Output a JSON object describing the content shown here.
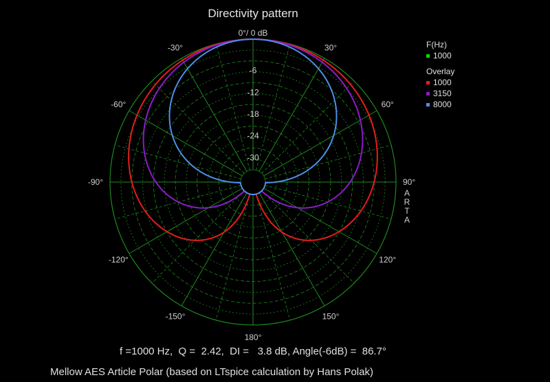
{
  "chart_data": {
    "type": "polar",
    "title": "Directivity pattern",
    "radial_unit_label": "0°/ 0 dB",
    "radial_ticks_db": [
      -6,
      -12,
      -18,
      -24,
      -30
    ],
    "radial_range_db": [
      -36,
      0
    ],
    "angle_ticks": [
      {
        "angle": -30,
        "label": "-30°"
      },
      {
        "angle": 30,
        "label": "30°"
      },
      {
        "angle": -60,
        "label": "-60°"
      },
      {
        "angle": 60,
        "label": "60°"
      },
      {
        "angle": -90,
        "label": "-90°"
      },
      {
        "angle": 90,
        "label": "90°"
      },
      {
        "angle": -120,
        "label": "-120°"
      },
      {
        "angle": 120,
        "label": "120°"
      },
      {
        "angle": -150,
        "label": "-150°"
      },
      {
        "angle": 150,
        "label": "150°"
      },
      {
        "angle": 180,
        "label": "180°"
      }
    ],
    "grid": true,
    "legend_position": "top-right",
    "legend_main_header": "F(Hz)",
    "legend_main": [
      {
        "name": "1000",
        "color": "#00e000"
      }
    ],
    "legend_overlay_header": "Overlay",
    "series": [
      {
        "name": "1000",
        "color": "#e81c1c",
        "pattern": "cardioid",
        "a": 0.5
      },
      {
        "name": "3150",
        "color": "#8a1cc9",
        "pattern": "cardioid",
        "a": 0.5,
        "power": 2.1
      },
      {
        "name": "8000",
        "color": "#4f8fe8",
        "pattern": "cardioid",
        "a": 0.5,
        "power": 5.5
      }
    ]
  },
  "info_line": "f =1000 Hz,  Q =  2.42,  DI =   3.8 dB, Angle(-6dB) =  86.7°",
  "footer": "Mellow AES Article Polar (based on LTspice calculation by Hans Polak)",
  "side_label": "ARTA",
  "colors": {
    "background": "#000000",
    "grid": "#1f8a1f"
  }
}
